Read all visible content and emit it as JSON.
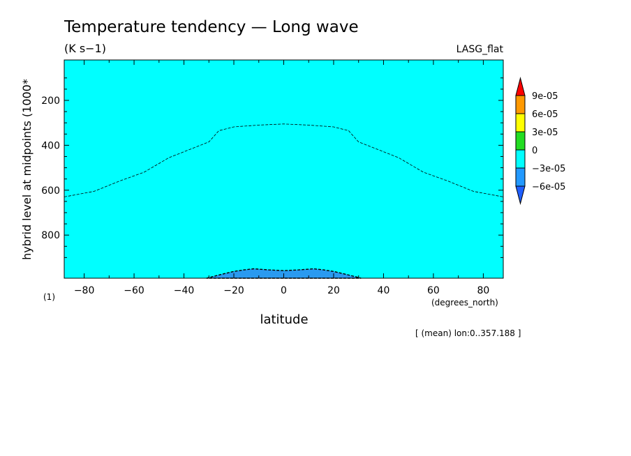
{
  "chart_data": {
    "type": "contour",
    "title": "Temperature tendency — Long wave",
    "units": "(K s−1)",
    "dataset": "LASG_flat",
    "xlabel": "latitude",
    "xunits": "(degrees_north)",
    "ylabel": "hybrid level at midpoints (1000*",
    "ylabel_units": "(1)",
    "subset_note": "[ (mean) lon:0..357.188 ]",
    "x_ticks": [
      "−80",
      "−60",
      "−40",
      "−20",
      "0",
      "20",
      "40",
      "60",
      "80"
    ],
    "x_tick_values": [
      -80,
      -60,
      -40,
      -20,
      0,
      20,
      40,
      60,
      80
    ],
    "y_ticks": [
      "200",
      "400",
      "600",
      "800"
    ],
    "y_tick_values": [
      200,
      400,
      600,
      800
    ],
    "xlim": [
      -88,
      88
    ],
    "ylim": [
      992,
      20
    ],
    "y_inverted": true,
    "legend": {
      "placement": "right",
      "labels": [
        "9e-05",
        "6e-05",
        "3e-05",
        "0",
        "−3e-05",
        "−6e-05"
      ],
      "colors": [
        "#ff0000",
        "#ff9900",
        "#ffff00",
        "#22dd22",
        "#00ffff",
        "#2299ff",
        "#1f5fff"
      ]
    },
    "background_color": "#00ffff",
    "filled_region": {
      "color": "#2a9af0",
      "lat": [
        -31,
        -25,
        -20,
        -16,
        -12,
        -6,
        0,
        6,
        12,
        16,
        20,
        25,
        31
      ],
      "level": [
        992,
        975,
        962,
        955,
        950,
        955,
        958,
        955,
        950,
        955,
        962,
        975,
        992
      ]
    },
    "dashed_contour": {
      "lat": [
        -88,
        -76,
        -66,
        -56,
        -46,
        -38,
        -30,
        -26,
        -20,
        -10,
        0,
        10,
        20,
        26,
        30,
        38,
        46,
        56,
        66,
        76,
        88
      ],
      "level": [
        630,
        605,
        560,
        520,
        455,
        420,
        385,
        335,
        318,
        310,
        305,
        310,
        318,
        335,
        385,
        420,
        455,
        520,
        560,
        605,
        630
      ]
    }
  }
}
